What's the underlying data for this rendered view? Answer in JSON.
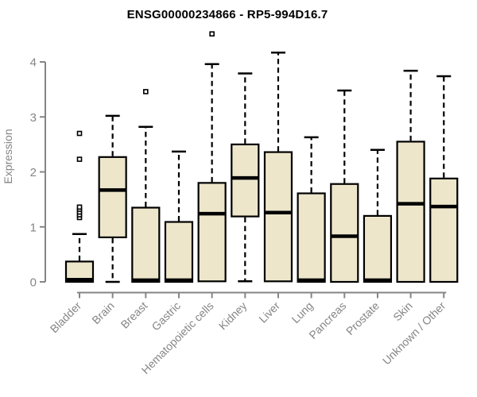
{
  "chart_data": {
    "type": "boxplot",
    "title": "ENSG00000234866 - RP5-994D16.7",
    "ylabel": "Expression",
    "xlabel": "",
    "ylim": [
      0,
      4.6
    ],
    "yticks": [
      0,
      1,
      2,
      3,
      4
    ],
    "grid": false,
    "legend": null,
    "categories": [
      "Bladder",
      "Brain",
      "Breast",
      "Gastric",
      "Hematopoietic cells",
      "Kidney",
      "Liver",
      "Lung",
      "Pancreas",
      "Prostate",
      "Skin",
      "Unknown / Other"
    ],
    "boxes": [
      {
        "category": "Bladder",
        "low": 0,
        "q1": 0,
        "median": 0.04,
        "q3": 0.37,
        "high": 0.87,
        "outliers": [
          1.17,
          1.22,
          1.27,
          1.32,
          1.36,
          2.23,
          2.7
        ]
      },
      {
        "category": "Brain",
        "low": 0,
        "q1": 0.81,
        "median": 1.67,
        "q3": 2.27,
        "high": 3.02,
        "outliers": []
      },
      {
        "category": "Breast",
        "low": 0,
        "q1": 0,
        "median": 0.03,
        "q3": 1.35,
        "high": 2.82,
        "outliers": [
          3.46
        ]
      },
      {
        "category": "Gastric",
        "low": 0,
        "q1": 0,
        "median": 0.03,
        "q3": 1.09,
        "high": 2.37,
        "outliers": []
      },
      {
        "category": "Hematopoietic cells",
        "low": 0.01,
        "q1": 0.01,
        "median": 1.24,
        "q3": 1.8,
        "high": 3.96,
        "outliers": [
          4.51
        ]
      },
      {
        "category": "Kidney",
        "low": 0.01,
        "q1": 1.19,
        "median": 1.89,
        "q3": 2.5,
        "high": 3.79,
        "outliers": []
      },
      {
        "category": "Liver",
        "low": 0.01,
        "q1": 0.01,
        "median": 1.26,
        "q3": 2.36,
        "high": 4.17,
        "outliers": []
      },
      {
        "category": "Lung",
        "low": 0,
        "q1": 0,
        "median": 0.03,
        "q3": 1.61,
        "high": 2.63,
        "outliers": []
      },
      {
        "category": "Pancreas",
        "low": 0,
        "q1": 0,
        "median": 0.83,
        "q3": 1.78,
        "high": 3.48,
        "outliers": []
      },
      {
        "category": "Prostate",
        "low": 0,
        "q1": 0,
        "median": 0.03,
        "q3": 1.2,
        "high": 2.4,
        "outliers": []
      },
      {
        "category": "Skin",
        "low": 0,
        "q1": 0,
        "median": 1.42,
        "q3": 2.55,
        "high": 3.84,
        "outliers": []
      },
      {
        "category": "Unknown / Other",
        "low": 0,
        "q1": 0,
        "median": 1.37,
        "q3": 1.88,
        "high": 3.74,
        "outliers": []
      }
    ],
    "colors": {
      "box_fill": "#EDE6CB",
      "box_stroke": "#000000",
      "median": "#000000",
      "whisker": "#000000",
      "axis": "#858585",
      "tick_label": "#858585",
      "title": "#000000",
      "background": "#FFFFFF"
    }
  }
}
